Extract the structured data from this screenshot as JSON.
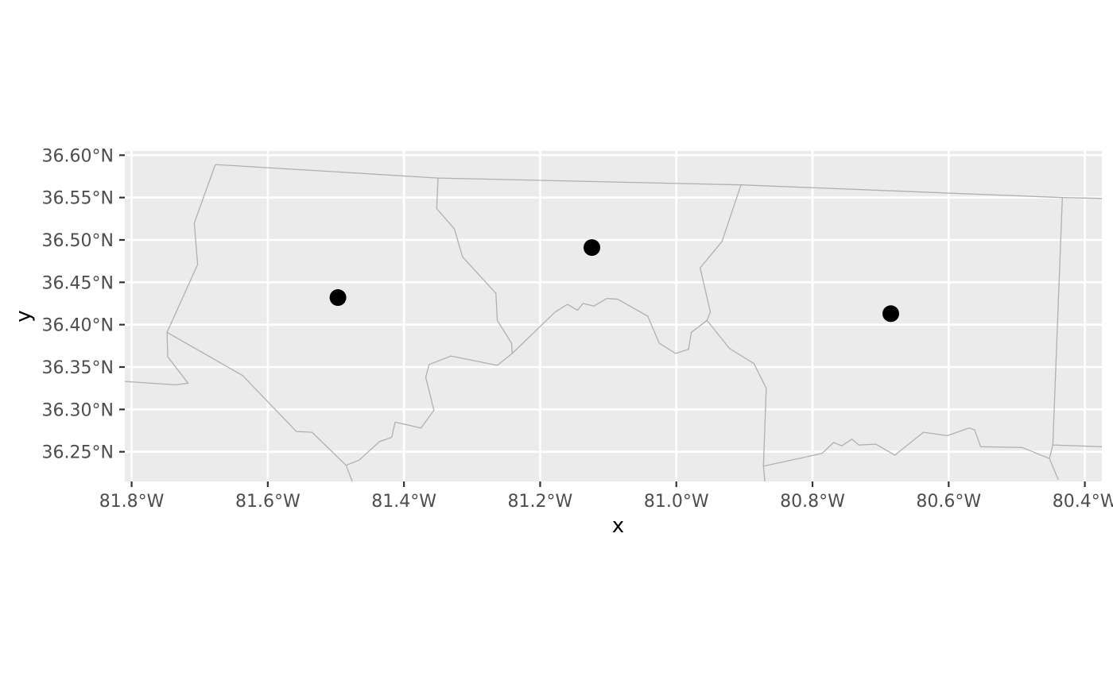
{
  "chart_data": {
    "type": "scatter",
    "xlabel": "x",
    "ylabel": "y",
    "xlim": [
      -81.81,
      -80.375
    ],
    "ylim": [
      36.215,
      36.605
    ],
    "grid": true,
    "x_ticks": [
      {
        "value": -81.8,
        "label": "81.8°W"
      },
      {
        "value": -81.6,
        "label": "81.6°W"
      },
      {
        "value": -81.4,
        "label": "81.4°W"
      },
      {
        "value": -81.2,
        "label": "81.2°W"
      },
      {
        "value": -81.0,
        "label": "81.0°W"
      },
      {
        "value": -80.8,
        "label": "80.8°W"
      },
      {
        "value": -80.6,
        "label": "80.6°W"
      },
      {
        "value": -80.4,
        "label": "80.4°W"
      }
    ],
    "y_ticks": [
      {
        "value": 36.25,
        "label": "36.25°N"
      },
      {
        "value": 36.3,
        "label": "36.30°N"
      },
      {
        "value": 36.35,
        "label": "36.35°N"
      },
      {
        "value": 36.4,
        "label": "36.40°N"
      },
      {
        "value": 36.45,
        "label": "36.45°N"
      },
      {
        "value": 36.5,
        "label": "36.50°N"
      },
      {
        "value": 36.55,
        "label": "36.55°N"
      },
      {
        "value": 36.6,
        "label": "36.60°N"
      }
    ],
    "points": [
      {
        "x": -81.497,
        "y": 36.432
      },
      {
        "x": -81.124,
        "y": 36.491
      },
      {
        "x": -80.685,
        "y": 36.413
      }
    ],
    "boundary_color": "#b0b0b0",
    "point_color": "#000000",
    "boundaries": [
      [
        [
          -81.677,
          36.589
        ],
        [
          -81.35,
          36.573
        ],
        [
          -80.905,
          36.565
        ],
        [
          -80.433,
          36.55
        ],
        [
          -80.375,
          36.549
        ]
      ],
      [
        [
          -81.677,
          36.589
        ],
        [
          -81.708,
          36.52
        ],
        [
          -81.703,
          36.471
        ],
        [
          -81.748,
          36.391
        ],
        [
          -81.747,
          36.362
        ],
        [
          -81.717,
          36.331
        ],
        [
          -81.735,
          36.329
        ],
        [
          -81.81,
          36.333
        ]
      ],
      [
        [
          -81.748,
          36.391
        ],
        [
          -81.637,
          36.34
        ],
        [
          -81.558,
          36.274
        ],
        [
          -81.535,
          36.273
        ],
        [
          -81.485,
          36.234
        ],
        [
          -81.476,
          36.215
        ]
      ],
      [
        [
          -81.485,
          36.234
        ],
        [
          -81.466,
          36.24
        ],
        [
          -81.436,
          36.262
        ],
        [
          -81.418,
          36.267
        ],
        [
          -81.413,
          36.285
        ],
        [
          -81.375,
          36.278
        ],
        [
          -81.356,
          36.299
        ],
        [
          -81.368,
          36.338
        ],
        [
          -81.363,
          36.353
        ],
        [
          -81.331,
          36.363
        ],
        [
          -81.263,
          36.352
        ],
        [
          -81.241,
          36.366
        ]
      ],
      [
        [
          -81.35,
          36.573
        ],
        [
          -81.352,
          36.537
        ],
        [
          -81.326,
          36.513
        ],
        [
          -81.314,
          36.48
        ],
        [
          -81.265,
          36.437
        ],
        [
          -81.263,
          36.405
        ],
        [
          -81.242,
          36.378
        ],
        [
          -81.241,
          36.366
        ]
      ],
      [
        [
          -81.241,
          36.366
        ],
        [
          -81.178,
          36.415
        ],
        [
          -81.16,
          36.424
        ],
        [
          -81.145,
          36.417
        ],
        [
          -81.137,
          36.425
        ],
        [
          -81.121,
          36.422
        ],
        [
          -81.102,
          36.431
        ],
        [
          -81.086,
          36.43
        ],
        [
          -81.042,
          36.41
        ],
        [
          -81.025,
          36.378
        ],
        [
          -81.001,
          36.366
        ],
        [
          -80.982,
          36.371
        ],
        [
          -80.978,
          36.391
        ],
        [
          -80.955,
          36.405
        ]
      ],
      [
        [
          -80.955,
          36.405
        ],
        [
          -80.95,
          36.415
        ],
        [
          -80.965,
          36.467
        ],
        [
          -80.933,
          36.498
        ],
        [
          -80.905,
          36.565
        ]
      ],
      [
        [
          -80.955,
          36.405
        ],
        [
          -80.922,
          36.372
        ],
        [
          -80.886,
          36.354
        ],
        [
          -80.868,
          36.325
        ],
        [
          -80.872,
          36.233
        ],
        [
          -80.87,
          36.215
        ]
      ],
      [
        [
          -80.872,
          36.233
        ],
        [
          -80.786,
          36.248
        ],
        [
          -80.769,
          36.261
        ],
        [
          -80.757,
          36.257
        ],
        [
          -80.742,
          36.265
        ],
        [
          -80.732,
          36.258
        ],
        [
          -80.707,
          36.259
        ],
        [
          -80.679,
          36.246
        ],
        [
          -80.637,
          36.273
        ],
        [
          -80.602,
          36.269
        ],
        [
          -80.57,
          36.278
        ],
        [
          -80.562,
          36.276
        ],
        [
          -80.553,
          36.256
        ],
        [
          -80.492,
          36.255
        ],
        [
          -80.452,
          36.242
        ],
        [
          -80.439,
          36.217
        ]
      ],
      [
        [
          -80.433,
          36.55
        ],
        [
          -80.447,
          36.258
        ],
        [
          -80.452,
          36.242
        ]
      ],
      [
        [
          -80.447,
          36.258
        ],
        [
          -80.375,
          36.256
        ]
      ]
    ]
  }
}
